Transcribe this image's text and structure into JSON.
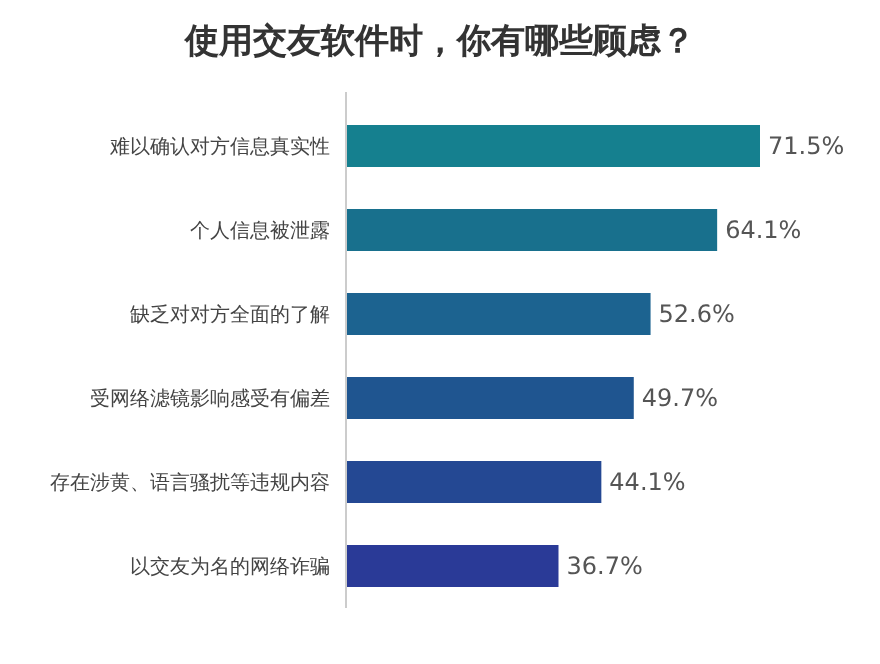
{
  "chart_data": {
    "type": "bar",
    "orientation": "horizontal",
    "title": "使用交友软件时，你有哪些顾虑？",
    "categories": [
      "难以确认对方信息真实性",
      "个人信息被泄露",
      "缺乏对对方全面的了解",
      "受网络滤镜影响感受有偏差",
      "存在涉黄、语言骚扰等违规内容",
      "以交友为名的网络诈骗"
    ],
    "values": [
      71.5,
      64.1,
      52.6,
      49.7,
      44.1,
      36.7
    ],
    "colors": [
      "#15808f",
      "#18708d",
      "#1c6390",
      "#1f5590",
      "#244893",
      "#2a3a97"
    ],
    "value_labels": [
      "71.5%",
      "64.1%",
      "52.6%",
      "49.7%",
      "44.1%",
      "36.7%"
    ]
  }
}
